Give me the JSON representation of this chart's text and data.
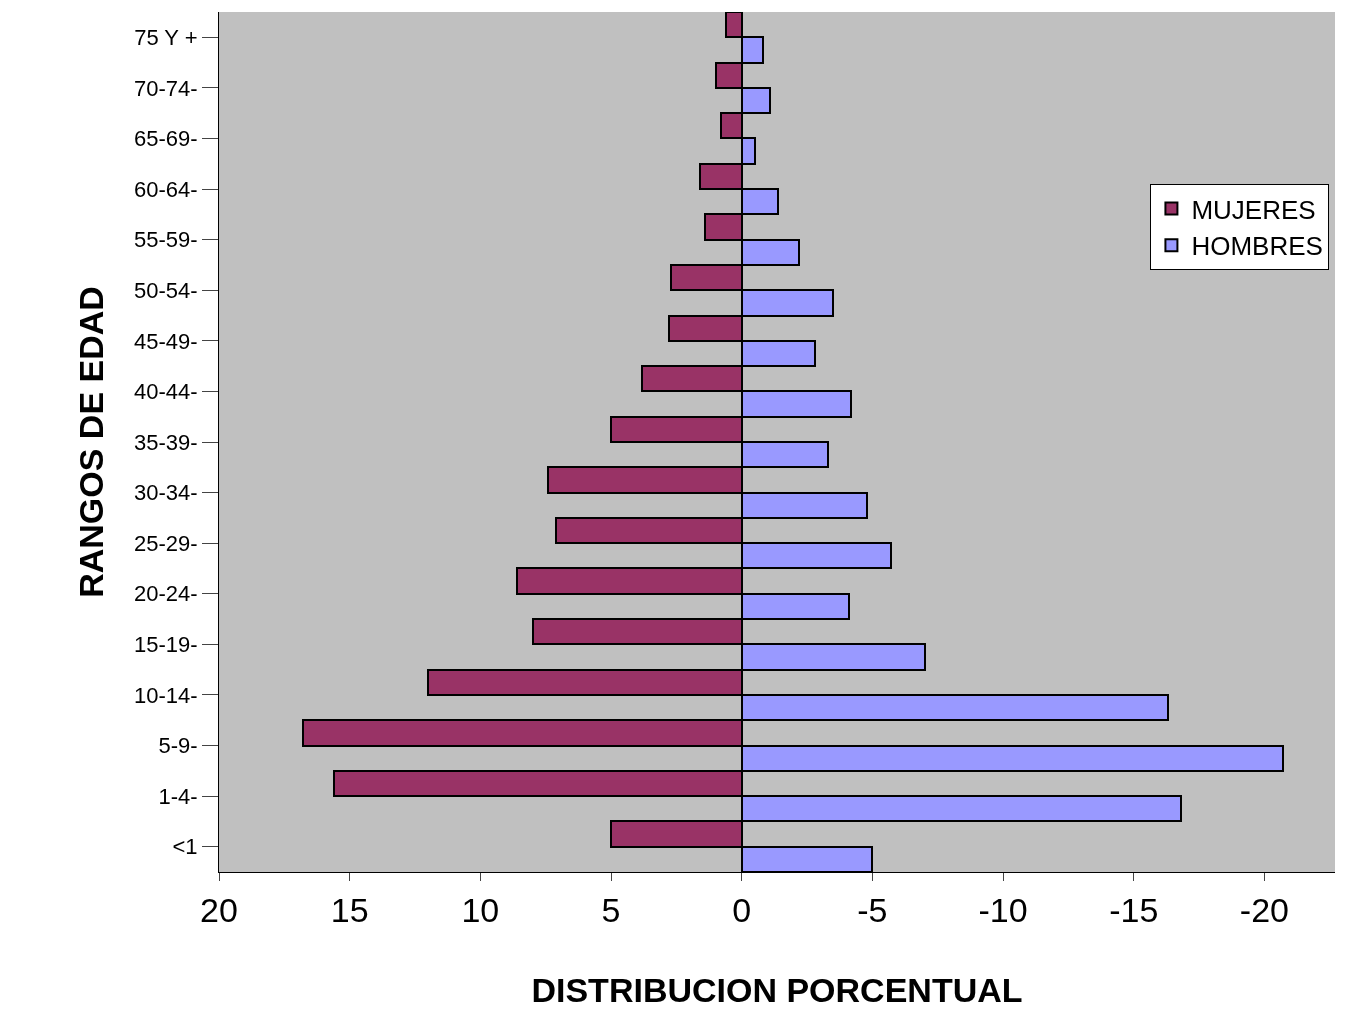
{
  "chart_data": {
    "type": "bar",
    "orientation": "horizontal",
    "xlabel": "DISTRIBUCION PORCENTUAL",
    "ylabel": "RANGOS DE EDAD",
    "categories": [
      "75 Y +",
      "70-74-",
      "65-69-",
      "60-64-",
      "55-59-",
      "50-54-",
      "45-49-",
      "40-44-",
      "35-39-",
      "30-34-",
      "25-29-",
      "20-24-",
      "15-19-",
      "10-14-",
      "5-9-",
      "1-4-",
      "<1"
    ],
    "series": [
      {
        "name": "MUJERES",
        "color": "#993366",
        "values": [
          0.6,
          1.0,
          0.8,
          1.6,
          1.4,
          2.7,
          2.8,
          3.8,
          5.0,
          7.4,
          7.1,
          8.6,
          8.0,
          12.0,
          16.8,
          15.6,
          5.0
        ]
      },
      {
        "name": "HOMBRES",
        "color": "#9999ff",
        "values": [
          -0.8,
          -1.1,
          -0.5,
          -1.4,
          -2.2,
          -3.5,
          -2.8,
          -4.2,
          -3.3,
          -4.8,
          -5.7,
          -4.1,
          -7.0,
          -16.3,
          -20.7,
          -16.8,
          -5.0
        ]
      }
    ],
    "xlim": [
      20,
      -22.7
    ],
    "xticks": [
      20,
      15,
      10,
      5,
      0,
      -5,
      -10,
      -15,
      -20
    ],
    "grid": false,
    "legend": "right"
  }
}
